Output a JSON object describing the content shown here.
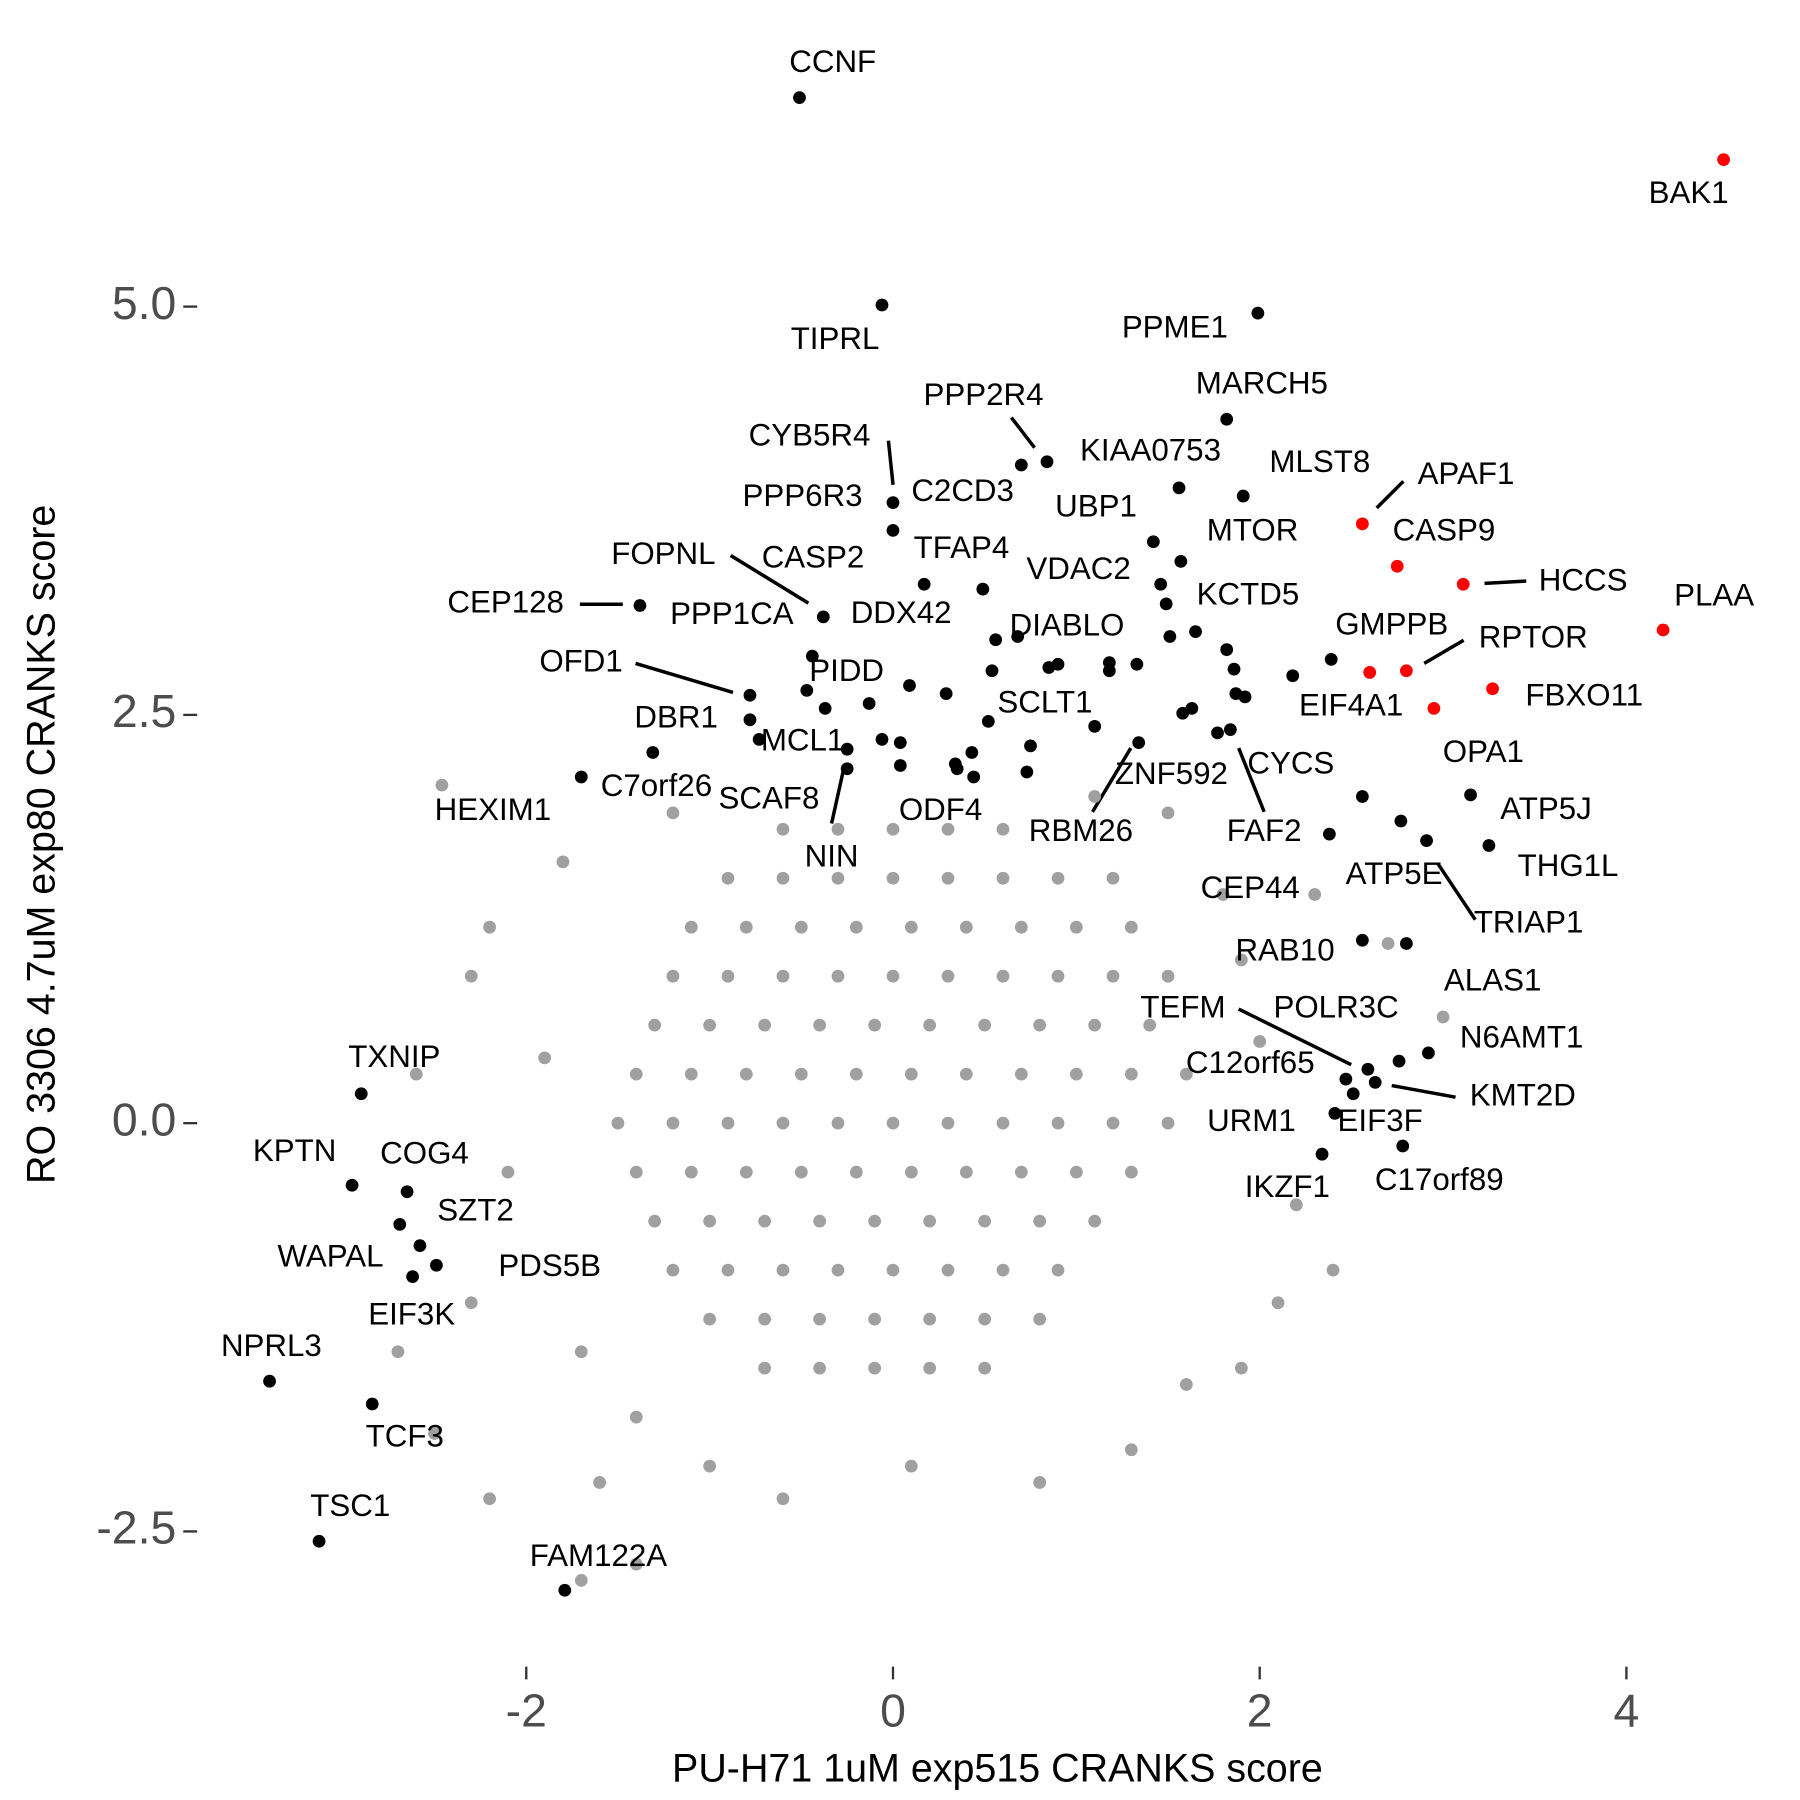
{
  "chart_data": {
    "type": "scatter",
    "xlabel": "PU-H71 1uM exp515 CRANKS score",
    "ylabel": "RO 3306 4.7uM exp80 CRANKS score",
    "xlim": [
      -3.7,
      4.7
    ],
    "ylim": [
      -3.2,
      6.7
    ],
    "xticks": [
      -2,
      0,
      2,
      4
    ],
    "yticks": [
      -2.5,
      {
        "value": 0,
        "label": "0.0"
      },
      2.5,
      {
        "value": 5,
        "label": "5.0"
      }
    ],
    "series": [
      {
        "color": "#a0a0a0",
        "x": [
          -0.6,
          -0.3,
          0.0,
          0.3,
          0.6,
          -0.9,
          -0.6,
          -0.3,
          0,
          0.3,
          0.6,
          0.9,
          1.2,
          -1.1,
          -0.8,
          -0.5,
          -0.2,
          0.1,
          0.4,
          0.7,
          1.0,
          1.3,
          -1.2,
          -0.9,
          -0.6,
          -0.3,
          0,
          0.3,
          0.6,
          0.9,
          1.2,
          1.5,
          -1.3,
          -1.0,
          -0.7,
          -0.4,
          -0.1,
          0.2,
          0.5,
          0.8,
          1.1,
          1.4,
          -1.4,
          -1.1,
          -0.8,
          -0.5,
          -0.2,
          0.1,
          0.4,
          0.7,
          1.0,
          1.3,
          1.6,
          -1.5,
          -1.2,
          -0.9,
          -0.6,
          -0.3,
          0,
          0.3,
          0.6,
          0.9,
          1.2,
          1.5,
          -1.4,
          -1.1,
          -0.8,
          -0.5,
          -0.2,
          0.1,
          0.4,
          0.7,
          1.0,
          1.3,
          -1.3,
          -1.0,
          -0.7,
          -0.4,
          -0.1,
          0.2,
          0.5,
          0.8,
          1.1,
          -1.2,
          -0.9,
          -0.6,
          -0.3,
          0,
          0.3,
          0.6,
          0.9,
          -1.0,
          -0.7,
          -0.4,
          -0.1,
          0.2,
          0.5,
          0.8,
          -0.7,
          -0.4,
          -0.1,
          0.2,
          0.5,
          -2.46,
          -1.2,
          -1.8,
          -2.2,
          -2.3,
          -1.9,
          -2.1,
          -2.3,
          -1.7,
          -1.4,
          -1.0,
          -0.6,
          -1.6,
          -2.2,
          -1.7,
          -1.4,
          0.1,
          0.8,
          1.3,
          1.9,
          2.1,
          2.4,
          2.2,
          2.0,
          1.9,
          1.8,
          2.3,
          2.7,
          3.0,
          1.5,
          1.1,
          -2.7,
          -2.5,
          -2.6,
          1.6
        ],
        "values": [
          1.8,
          1.8,
          1.8,
          1.8,
          1.8,
          1.5,
          1.5,
          1.5,
          1.5,
          1.5,
          1.5,
          1.5,
          1.5,
          1.2,
          1.2,
          1.2,
          1.2,
          1.2,
          1.2,
          1.2,
          1.2,
          1.2,
          0.9,
          0.9,
          0.9,
          0.9,
          0.9,
          0.9,
          0.9,
          0.9,
          0.9,
          0.9,
          0.6,
          0.6,
          0.6,
          0.6,
          0.6,
          0.6,
          0.6,
          0.6,
          0.6,
          0.6,
          0.3,
          0.3,
          0.3,
          0.3,
          0.3,
          0.3,
          0.3,
          0.3,
          0.3,
          0.3,
          0.3,
          0,
          0,
          0,
          0,
          0,
          0,
          0,
          0,
          0,
          0,
          0,
          -0.3,
          -0.3,
          -0.3,
          -0.3,
          -0.3,
          -0.3,
          -0.3,
          -0.3,
          -0.3,
          -0.3,
          -0.6,
          -0.6,
          -0.6,
          -0.6,
          -0.6,
          -0.6,
          -0.6,
          -0.6,
          -0.6,
          -0.9,
          -0.9,
          -0.9,
          -0.9,
          -0.9,
          -0.9,
          -0.9,
          -0.9,
          -1.2,
          -1.2,
          -1.2,
          -1.2,
          -1.2,
          -1.2,
          -1.2,
          -1.5,
          -1.5,
          -1.5,
          -1.5,
          -1.5,
          2.07,
          1.9,
          1.6,
          1.2,
          0.9,
          0.4,
          -0.3,
          -1.1,
          -1.4,
          -1.8,
          -2.1,
          -2.3,
          -2.2,
          -2.3,
          -2.8,
          -2.7,
          -2.1,
          -2.2,
          -2.0,
          -1.5,
          -1.1,
          -0.9,
          -0.5,
          0.5,
          1.0,
          1.4,
          1.4,
          1.1,
          0.65,
          1.9,
          2.0,
          -1.4,
          -1.9,
          0.3,
          -1.6
        ]
      },
      {
        "color": "#000000",
        "x": [
          -0.51,
          -0.06,
          1.99,
          1.82,
          0.7,
          0.84,
          1.56,
          1.91,
          0,
          0,
          1.42,
          1.57,
          0.49,
          1.46,
          -0.38,
          -1.38,
          0.17,
          1.49,
          1.65,
          0.56,
          0.68,
          1.51,
          2.39,
          -0.78,
          -0.44,
          -0.47,
          -0.37,
          -0.13,
          0.52,
          1.1,
          -1.31,
          -0.78,
          -0.73,
          -0.25,
          -0.25,
          -1.7,
          1.34,
          1.84,
          2.38,
          3.15,
          2.77,
          3.25,
          2.91,
          2.56,
          2.56,
          2.8,
          2.92,
          2.76,
          2.59,
          2.47,
          2.63,
          2.51,
          2.41,
          2.78,
          2.34,
          0.09,
          0.29,
          -0.06,
          0.04,
          0.04,
          0.34,
          0.43,
          0.44,
          0.35,
          0.75,
          0.73,
          0.85,
          0.9,
          1.18,
          1.18,
          1.33,
          0.54,
          1.82,
          1.86,
          1.87,
          1.92,
          1.58,
          1.63,
          1.77,
          2.18,
          -2.9,
          -2.95,
          -2.65,
          -2.69,
          -2.58,
          -2.49,
          -2.62,
          -3.4,
          -2.84,
          -3.13,
          -1.79
        ],
        "values": [
          6.28,
          5.01,
          4.96,
          4.31,
          4.03,
          4.05,
          3.89,
          3.84,
          3.8,
          3.63,
          3.56,
          3.44,
          3.27,
          3.3,
          3.1,
          3.17,
          3.3,
          3.18,
          3.01,
          2.96,
          2.98,
          2.98,
          2.84,
          2.62,
          2.86,
          2.65,
          2.54,
          2.57,
          2.46,
          2.43,
          2.27,
          2.47,
          2.35,
          2.29,
          2.17,
          2.12,
          2.33,
          2.41,
          1.77,
          2.01,
          1.85,
          1.7,
          1.73,
          2.0,
          1.12,
          1.1,
          0.43,
          0.38,
          0.33,
          0.27,
          0.25,
          0.18,
          0.06,
          -0.14,
          -0.19,
          2.68,
          2.63,
          2.35,
          2.33,
          2.19,
          2.2,
          2.27,
          2.12,
          2.17,
          2.31,
          2.15,
          2.79,
          2.81,
          2.82,
          2.77,
          2.81,
          2.77,
          2.9,
          2.78,
          2.63,
          2.61,
          2.51,
          2.54,
          2.39,
          2.74,
          0.18,
          -0.38,
          -0.42,
          -0.62,
          -0.75,
          -0.87,
          -0.94,
          -1.58,
          -1.72,
          -2.56,
          -2.86
        ]
      },
      {
        "color": "#ff0000",
        "x": [
          4.53,
          2.56,
          2.75,
          3.11,
          4.2,
          2.8,
          2.6,
          3.27,
          2.95
        ],
        "values": [
          5.9,
          3.67,
          3.41,
          3.3,
          3.02,
          2.77,
          2.76,
          2.66,
          2.54
        ]
      }
    ],
    "labels": [
      "CCNF",
      "BAK1",
      "TIPRL",
      "PPME1",
      "MARCH5",
      "PPP2R4",
      "KIAA0753",
      "MLST8",
      "CYB5R4",
      "APAF1",
      "C2CD3",
      "PPP6R3",
      "UBP1",
      "MTOR",
      "CASP9",
      "TFAP4",
      "FOPNL",
      "CASP2",
      "VDAC2",
      "HCCS",
      "CEP128",
      "KCTD5",
      "PLAA",
      "PPP1CA",
      "DDX42",
      "DIABLO",
      "GMPPB",
      "RPTOR",
      "OFD1",
      "PIDD",
      "FBXO11",
      "EIF4A1",
      "SCLT1",
      "DBR1",
      "MCL1",
      "OPA1",
      "CYCS",
      "ZNF592",
      "C7orf26",
      "SCAF8",
      "ATP5J",
      "HEXIM1",
      "ODF4",
      "RBM26",
      "FAF2",
      "NIN",
      "THG1L",
      "ATP5E",
      "CEP44",
      "TRIAP1",
      "RAB10",
      "ALAS1",
      "TEFM",
      "POLR3C",
      "N6AMT1",
      "TXNIP",
      "C12orf65",
      "KMT2D",
      "URM1",
      "EIF3F",
      "KPTN",
      "COG4",
      "IKZF1",
      "C17orf89",
      "SZT2",
      "WAPAL",
      "PDS5B",
      "EIF3K",
      "NPRL3",
      "TCF3",
      "TSC1",
      "FAM122A"
    ]
  }
}
